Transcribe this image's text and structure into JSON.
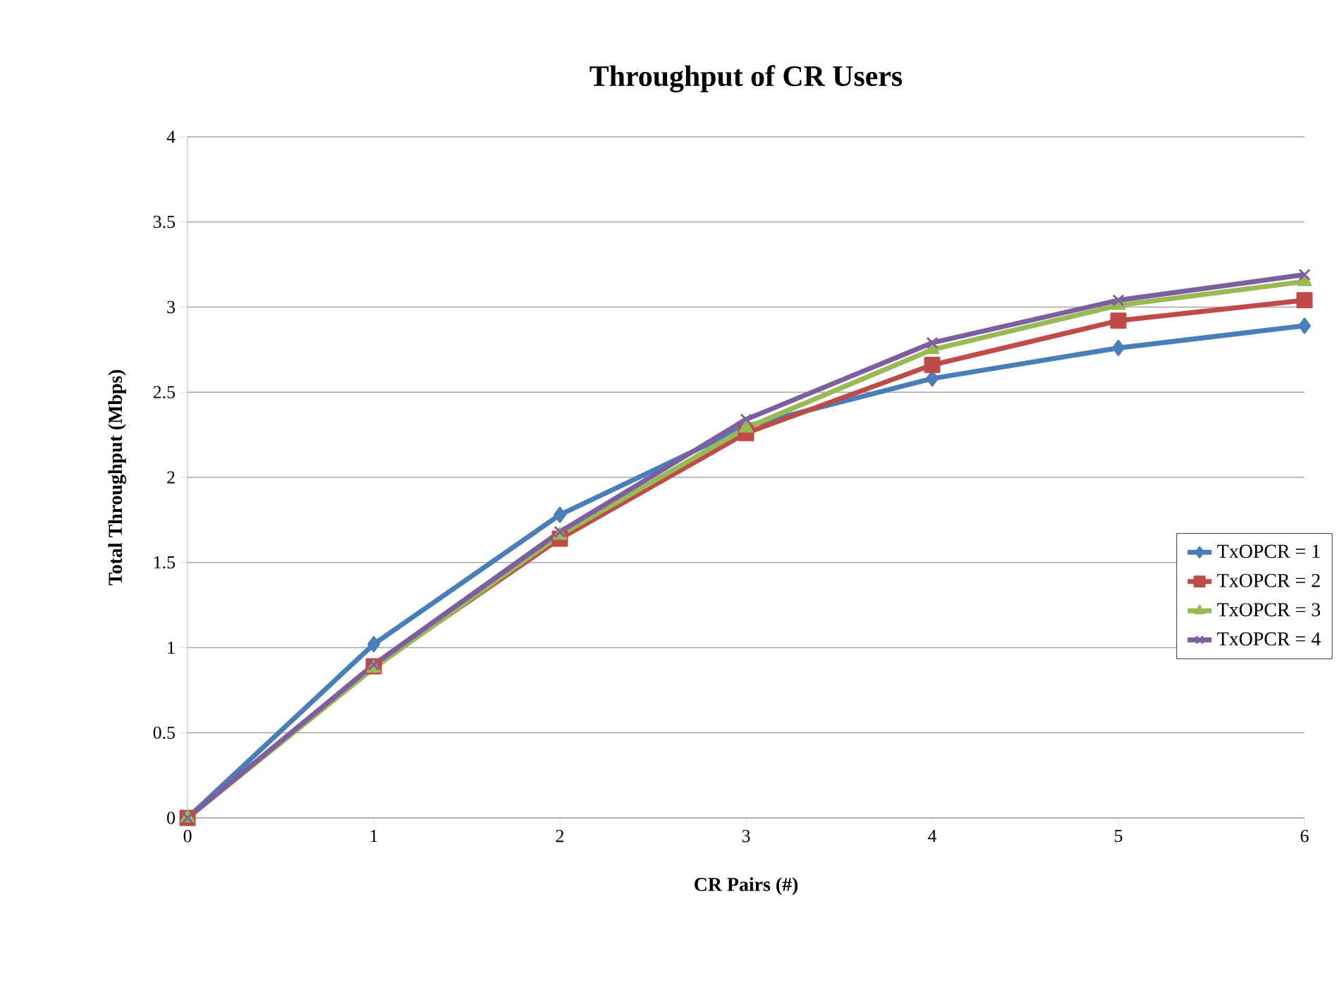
{
  "chart_data": {
    "type": "line",
    "title": "Throughput of CR Users",
    "xlabel": "CR Pairs (#)",
    "ylabel": "Total Throughput  (Mbps)",
    "x": [
      0,
      1,
      2,
      3,
      4,
      5,
      6
    ],
    "series": [
      {
        "name": "TxOPCR = 1",
        "color": "#4a7ebb",
        "marker": "diamond",
        "values": [
          0,
          1.02,
          1.78,
          2.3,
          2.58,
          2.76,
          2.89
        ]
      },
      {
        "name": "TxOPCR = 2",
        "color": "#be4b48",
        "marker": "square",
        "values": [
          0,
          0.89,
          1.64,
          2.26,
          2.66,
          2.92,
          3.04
        ]
      },
      {
        "name": "TxOPCR = 3",
        "color": "#98b954",
        "marker": "triangle",
        "values": [
          0,
          0.88,
          1.66,
          2.29,
          2.75,
          3.01,
          3.15
        ]
      },
      {
        "name": "TxOPCR = 4",
        "color": "#7d5fa0",
        "marker": "cross",
        "values": [
          0,
          0.9,
          1.68,
          2.34,
          2.79,
          3.04,
          3.19
        ]
      }
    ],
    "xlim": [
      0,
      6
    ],
    "xticks": [
      0,
      1,
      2,
      3,
      4,
      5,
      6
    ],
    "ylim": [
      0,
      4
    ],
    "yticks": [
      0,
      0.5,
      1,
      1.5,
      2,
      2.5,
      3,
      3.5,
      4
    ],
    "grid": "y",
    "legend": "right",
    "line_style": "solid"
  }
}
